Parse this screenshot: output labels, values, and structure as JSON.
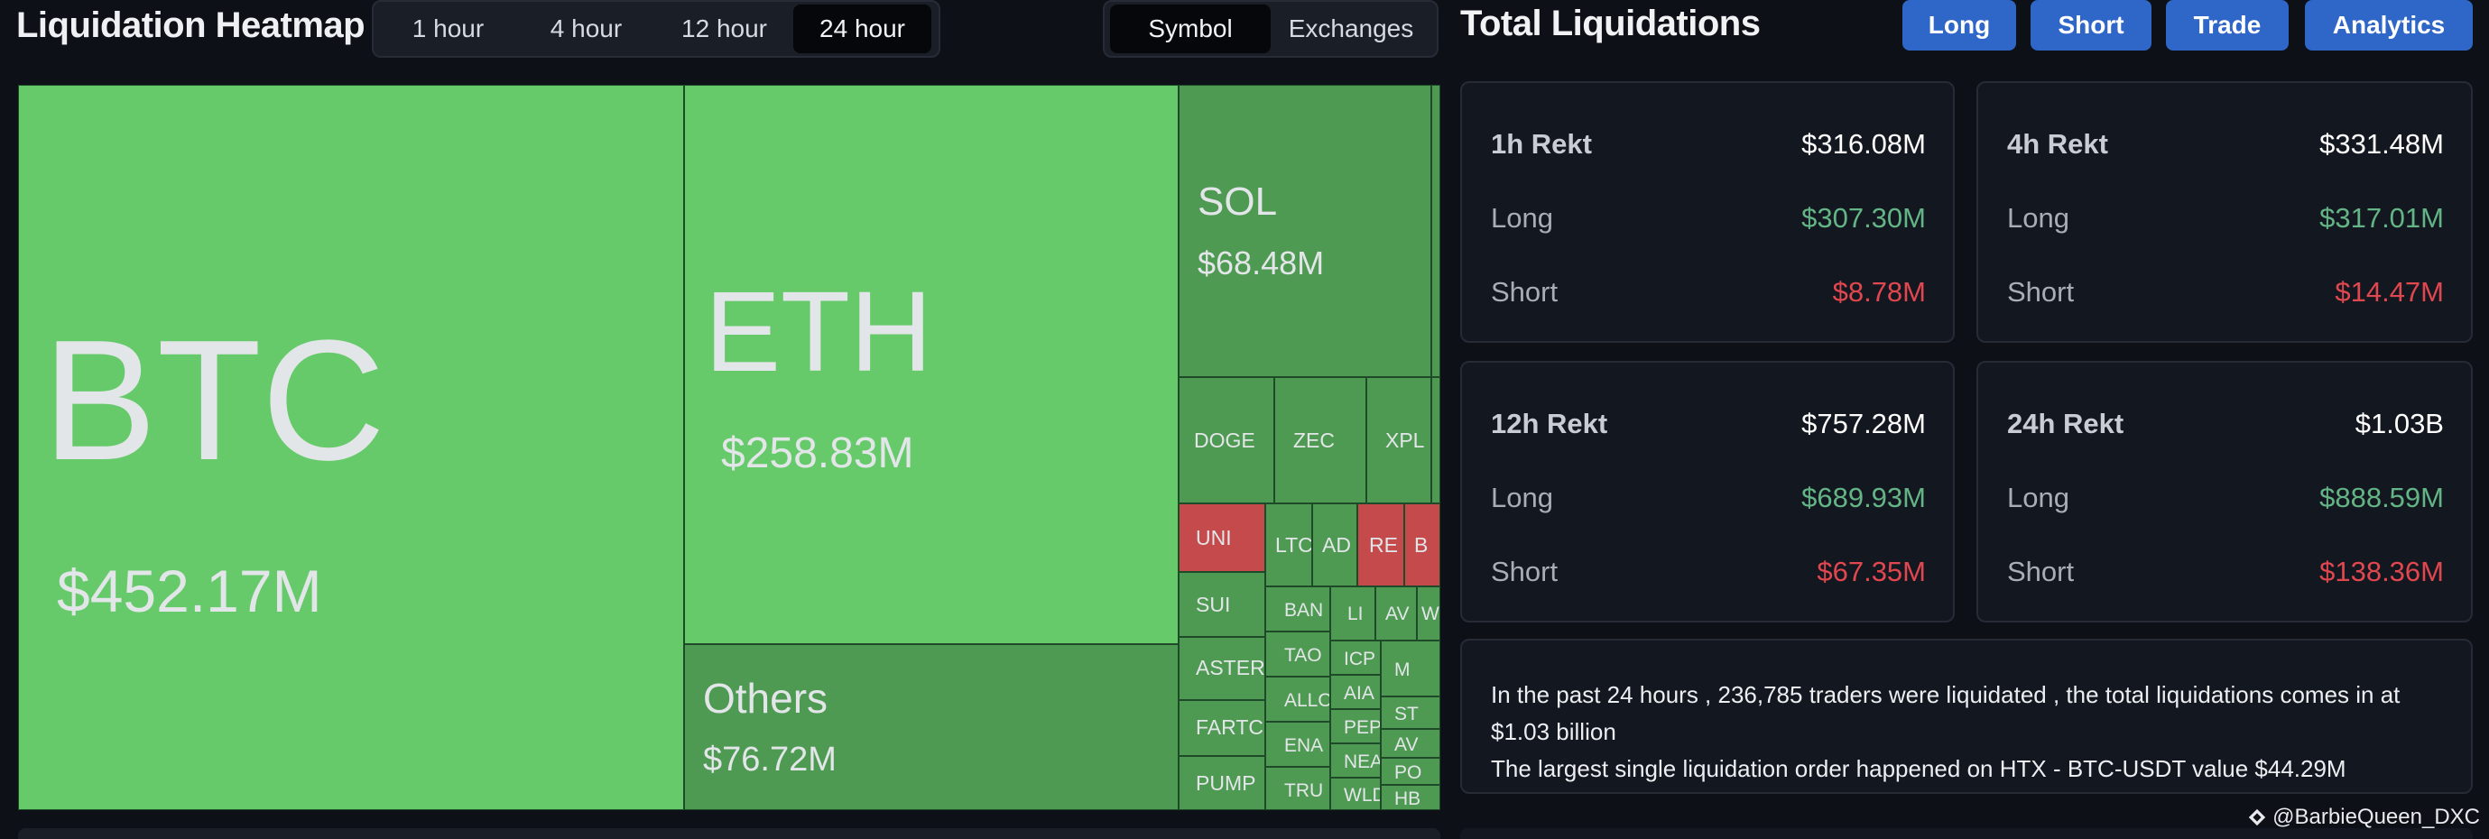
{
  "heatmap": {
    "title": "Liquidation Heatmap",
    "time_tabs": [
      "1 hour",
      "4 hour",
      "12 hour",
      "24 hour"
    ],
    "active_time_tab": "24 hour",
    "view_tabs": [
      "Symbol",
      "Exchanges"
    ],
    "active_view_tab": "Symbol",
    "cells": {
      "btc": {
        "symbol": "BTC",
        "value": "$452.17M"
      },
      "eth": {
        "symbol": "ETH",
        "value": "$258.83M"
      },
      "others": {
        "symbol": "Others",
        "value": "$76.72M"
      },
      "sol": {
        "symbol": "SOL",
        "value": "$68.48M"
      },
      "doge": {
        "symbol": "DOGE"
      },
      "zec": {
        "symbol": "ZEC"
      },
      "xpl": {
        "symbol": "XPL"
      },
      "uni": {
        "symbol": "UNI"
      },
      "ltc": {
        "symbol": "LTC"
      },
      "ada": {
        "symbol": "AD"
      },
      "re": {
        "symbol": "RE"
      },
      "b": {
        "symbol": "B"
      },
      "sui": {
        "symbol": "SUI"
      },
      "aster": {
        "symbol": "ASTER"
      },
      "fartcoin": {
        "symbol": "FARTC"
      },
      "pump": {
        "symbol": "PUMP"
      },
      "bank": {
        "symbol": "BAN"
      },
      "tao": {
        "symbol": "TAO"
      },
      "allo": {
        "symbol": "ALLO"
      },
      "ena": {
        "symbol": "ENA"
      },
      "trump": {
        "symbol": "TRU"
      },
      "li": {
        "symbol": "LI"
      },
      "av": {
        "symbol": "AV"
      },
      "w": {
        "symbol": "W"
      },
      "icp": {
        "symbol": "ICP"
      },
      "m": {
        "symbol": "M"
      },
      "aia": {
        "symbol": "AIA"
      },
      "pepe": {
        "symbol": "PEP"
      },
      "st": {
        "symbol": "ST"
      },
      "near": {
        "symbol": "NEA"
      },
      "avax": {
        "symbol": "AV"
      },
      "wld": {
        "symbol": "WLD"
      },
      "po": {
        "symbol": "PO"
      },
      "hb": {
        "symbol": "HB"
      }
    }
  },
  "totals": {
    "title": "Total Liquidations",
    "buttons": [
      "Long",
      "Short",
      "Trade",
      "Analytics"
    ],
    "cards": [
      {
        "label": "1h Rekt",
        "total": "$316.08M",
        "long_label": "Long",
        "long": "$307.30M",
        "short_label": "Short",
        "short": "$8.78M"
      },
      {
        "label": "4h Rekt",
        "total": "$331.48M",
        "long_label": "Long",
        "long": "$317.01M",
        "short_label": "Short",
        "short": "$14.47M"
      },
      {
        "label": "12h Rekt",
        "total": "$757.28M",
        "long_label": "Long",
        "long": "$689.93M",
        "short_label": "Short",
        "short": "$67.35M"
      },
      {
        "label": "24h Rekt",
        "total": "$1.03B",
        "long_label": "Long",
        "long": "$888.59M",
        "short_label": "Short",
        "short": "$138.36M"
      }
    ],
    "summary_line1": "In the past 24 hours , 236,785 traders were liquidated , the total liquidations comes in at $1.03 billion",
    "summary_line2": "The largest single liquidation order happened on HTX - BTC-USDT value $44.29M"
  },
  "watermark": "@BarbieQueen_DXC",
  "colors": {
    "green": "#66ca6b",
    "green_dark": "#4f9a53",
    "red": "#c44a4c",
    "long": "#64b586",
    "short": "#e0474f",
    "button": "#2f67c8"
  }
}
